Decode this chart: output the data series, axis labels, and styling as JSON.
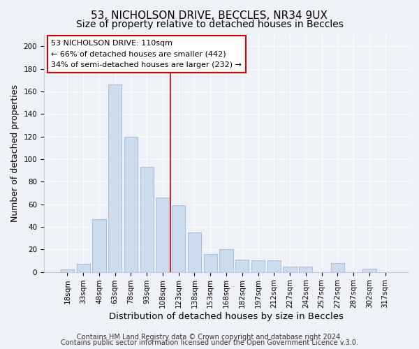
{
  "title": "53, NICHOLSON DRIVE, BECCLES, NR34 9UX",
  "subtitle": "Size of property relative to detached houses in Beccles",
  "xlabel": "Distribution of detached houses by size in Beccles",
  "ylabel": "Number of detached properties",
  "bar_labels": [
    "18sqm",
    "33sqm",
    "48sqm",
    "63sqm",
    "78sqm",
    "93sqm",
    "108sqm",
    "123sqm",
    "138sqm",
    "153sqm",
    "168sqm",
    "182sqm",
    "197sqm",
    "212sqm",
    "227sqm",
    "242sqm",
    "257sqm",
    "272sqm",
    "287sqm",
    "302sqm",
    "317sqm"
  ],
  "bar_values": [
    2,
    7,
    47,
    166,
    120,
    93,
    66,
    59,
    35,
    16,
    20,
    11,
    10,
    10,
    5,
    5,
    0,
    8,
    0,
    3,
    0
  ],
  "bar_color": "#ccdcee",
  "bar_edge_color": "#a8bfd4",
  "vline_color": "#cc0000",
  "ylim": [
    0,
    210
  ],
  "yticks": [
    0,
    20,
    40,
    60,
    80,
    100,
    120,
    140,
    160,
    180,
    200
  ],
  "annotation_title": "53 NICHOLSON DRIVE: 110sqm",
  "annotation_line1": "← 66% of detached houses are smaller (442)",
  "annotation_line2": "34% of semi-detached houses are larger (232) →",
  "annotation_box_color": "#ffffff",
  "annotation_box_edge": "#cc0000",
  "footer1": "Contains HM Land Registry data © Crown copyright and database right 2024.",
  "footer2": "Contains public sector information licensed under the Open Government Licence v.3.0.",
  "title_fontsize": 11,
  "subtitle_fontsize": 10,
  "xlabel_fontsize": 9.5,
  "ylabel_fontsize": 9,
  "tick_fontsize": 7.5,
  "annotation_fontsize": 8,
  "footer_fontsize": 7,
  "background_color": "#eef2f8",
  "grid_color": "#ffffff",
  "spine_color": "#c0c8d8"
}
